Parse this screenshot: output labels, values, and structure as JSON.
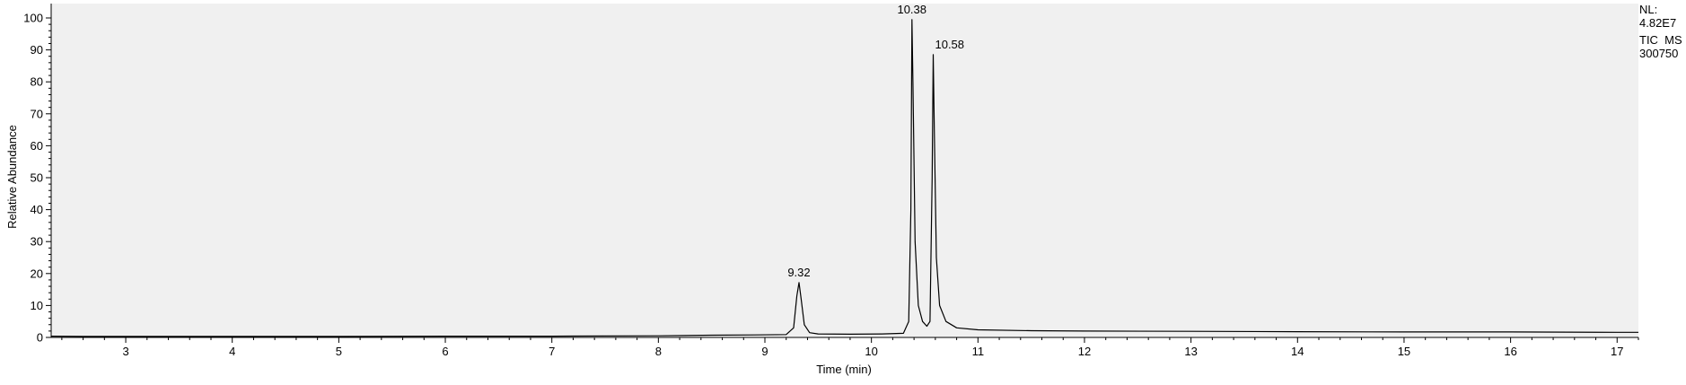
{
  "chart_data": {
    "type": "line",
    "title": "",
    "xlabel": "Time (min)",
    "ylabel": "Relative Abundance",
    "xlim": [
      2.3,
      17.2
    ],
    "ylim": [
      0,
      100
    ],
    "x_ticks": [
      3,
      4,
      5,
      6,
      7,
      8,
      9,
      10,
      11,
      12,
      13,
      14,
      15,
      16,
      17
    ],
    "y_ticks": [
      0,
      10,
      20,
      30,
      40,
      50,
      60,
      70,
      80,
      90,
      100
    ],
    "grid": false,
    "legend": "none",
    "colors": {
      "trace": "#000000",
      "plot_background": "#f0f0f0",
      "axis": "#000000"
    },
    "series": [
      {
        "x": [
          2.3,
          2.6,
          3.0,
          3.5,
          4.0,
          5.0,
          6.0,
          7.0,
          8.0,
          8.5,
          8.9,
          9.2,
          9.27,
          9.3,
          9.32,
          9.34,
          9.37,
          9.42,
          9.5,
          9.8,
          10.1,
          10.3,
          10.35,
          10.37,
          10.38,
          10.39,
          10.41,
          10.44,
          10.48,
          10.52,
          10.55,
          10.57,
          10.58,
          10.59,
          10.61,
          10.64,
          10.7,
          10.8,
          11.0,
          11.5,
          12.0,
          13.0,
          14.0,
          15.0,
          16.0,
          17.0,
          17.2
        ],
        "y": [
          0.4,
          0.3,
          0.3,
          0.3,
          0.3,
          0.3,
          0.4,
          0.4,
          0.5,
          0.7,
          0.8,
          0.9,
          3.0,
          13.0,
          17.2,
          12.0,
          4.0,
          1.5,
          1.1,
          1.0,
          1.1,
          1.3,
          5.0,
          40.0,
          99.5,
          80.0,
          30.0,
          10.0,
          5.0,
          3.5,
          5.0,
          50.0,
          88.5,
          65.0,
          25.0,
          10.0,
          5.0,
          3.0,
          2.4,
          2.1,
          2.0,
          1.9,
          1.8,
          1.7,
          1.7,
          1.6,
          1.6
        ]
      }
    ],
    "peak_labels": [
      {
        "x": 9.32,
        "y": 17.2,
        "label": "9.32"
      },
      {
        "x": 10.38,
        "y": 99.5,
        "label": "10.38"
      },
      {
        "x": 10.58,
        "y": 88.5,
        "label": "10.58"
      }
    ],
    "annotation": {
      "nl_label": "NL:",
      "nl_value": "4.82E7",
      "scan_filter": "TIC  MS",
      "sample_name": "300750"
    }
  }
}
